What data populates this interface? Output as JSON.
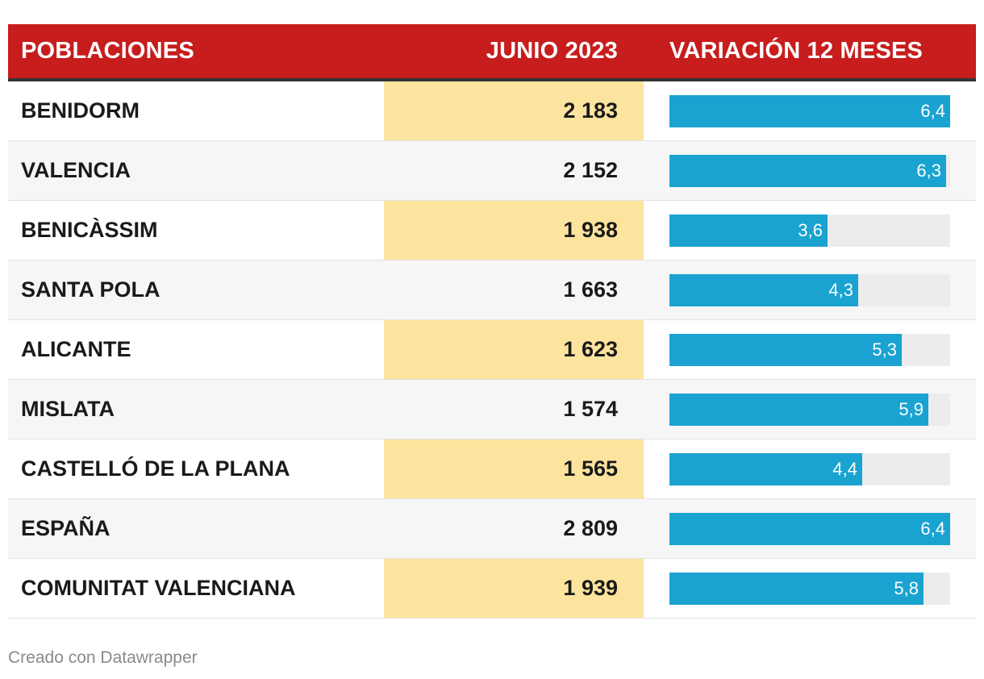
{
  "header": {
    "col1": "POBLACIONES",
    "col2": "JUNIO 2023",
    "col3": "VARIACIÓN 12 MESES"
  },
  "chart_data": {
    "type": "table",
    "columns": [
      "POBLACIONES",
      "JUNIO 2023",
      "VARIACIÓN 12 MESES"
    ],
    "bar_max": 6.4,
    "rows": [
      {
        "name": "BENIDORM",
        "value": "2 183",
        "variation": 6.4,
        "variation_label": "6,4"
      },
      {
        "name": "VALENCIA",
        "value": "2 152",
        "variation": 6.3,
        "variation_label": "6,3"
      },
      {
        "name": "BENICÀSSIM",
        "value": "1 938",
        "variation": 3.6,
        "variation_label": "3,6"
      },
      {
        "name": "SANTA POLA",
        "value": "1 663",
        "variation": 4.3,
        "variation_label": "4,3"
      },
      {
        "name": "ALICANTE",
        "value": "1 623",
        "variation": 5.3,
        "variation_label": "5,3"
      },
      {
        "name": "MISLATA",
        "value": "1 574",
        "variation": 5.9,
        "variation_label": "5,9"
      },
      {
        "name": "CASTELLÓ DE LA PLANA",
        "value": "1 565",
        "variation": 4.4,
        "variation_label": "4,4"
      },
      {
        "name": "ESPAÑA",
        "value": "2 809",
        "variation": 6.4,
        "variation_label": "6,4"
      },
      {
        "name": "COMUNITAT VALENCIANA",
        "value": "1 939",
        "variation": 5.8,
        "variation_label": "5,8"
      }
    ]
  },
  "colors": {
    "header_bg": "#c71d1d",
    "highlight_col": "#fde49e",
    "bar": "#1aa3d1",
    "bar_track": "#ececec"
  },
  "footer": {
    "credit": "Creado con Datawrapper"
  }
}
